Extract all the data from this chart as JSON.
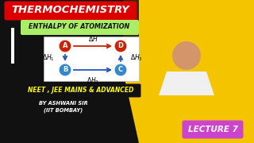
{
  "bg_left_color": "#111111",
  "bg_right_color": "#f5c400",
  "title_text": "THERMOCHEMISTRY",
  "title_bg": "#dd0000",
  "title_color": "#ffffff",
  "subtitle_text": "ENTHALPY OF ATOMIZATION",
  "subtitle_bg": "#aaee66",
  "subtitle_color": "#111111",
  "node_A_color": "#cc2200",
  "node_D_color": "#cc2200",
  "node_B_color": "#3388cc",
  "node_C_color": "#3388cc",
  "arrow_blue": "#2255bb",
  "arrow_red": "#cc2200",
  "bottom_label_text": "NEET , JEE MAINS & ADVANCED",
  "bottom_label_bg": "#111111",
  "bottom_label_color": "#ffff00",
  "author_text": "BY ASHWANI SIR\n(IIT BOMBAY)",
  "author_color": "#ffffff",
  "lecture_text": "LECTURE 7",
  "lecture_bg": "#cc44cc",
  "lecture_color": "#ffffff",
  "white_stripe_color": "#ffffff",
  "diagram_bg": "#ffffff",
  "skin_color": "#d4956a",
  "shirt_color": "#f0f0f0"
}
